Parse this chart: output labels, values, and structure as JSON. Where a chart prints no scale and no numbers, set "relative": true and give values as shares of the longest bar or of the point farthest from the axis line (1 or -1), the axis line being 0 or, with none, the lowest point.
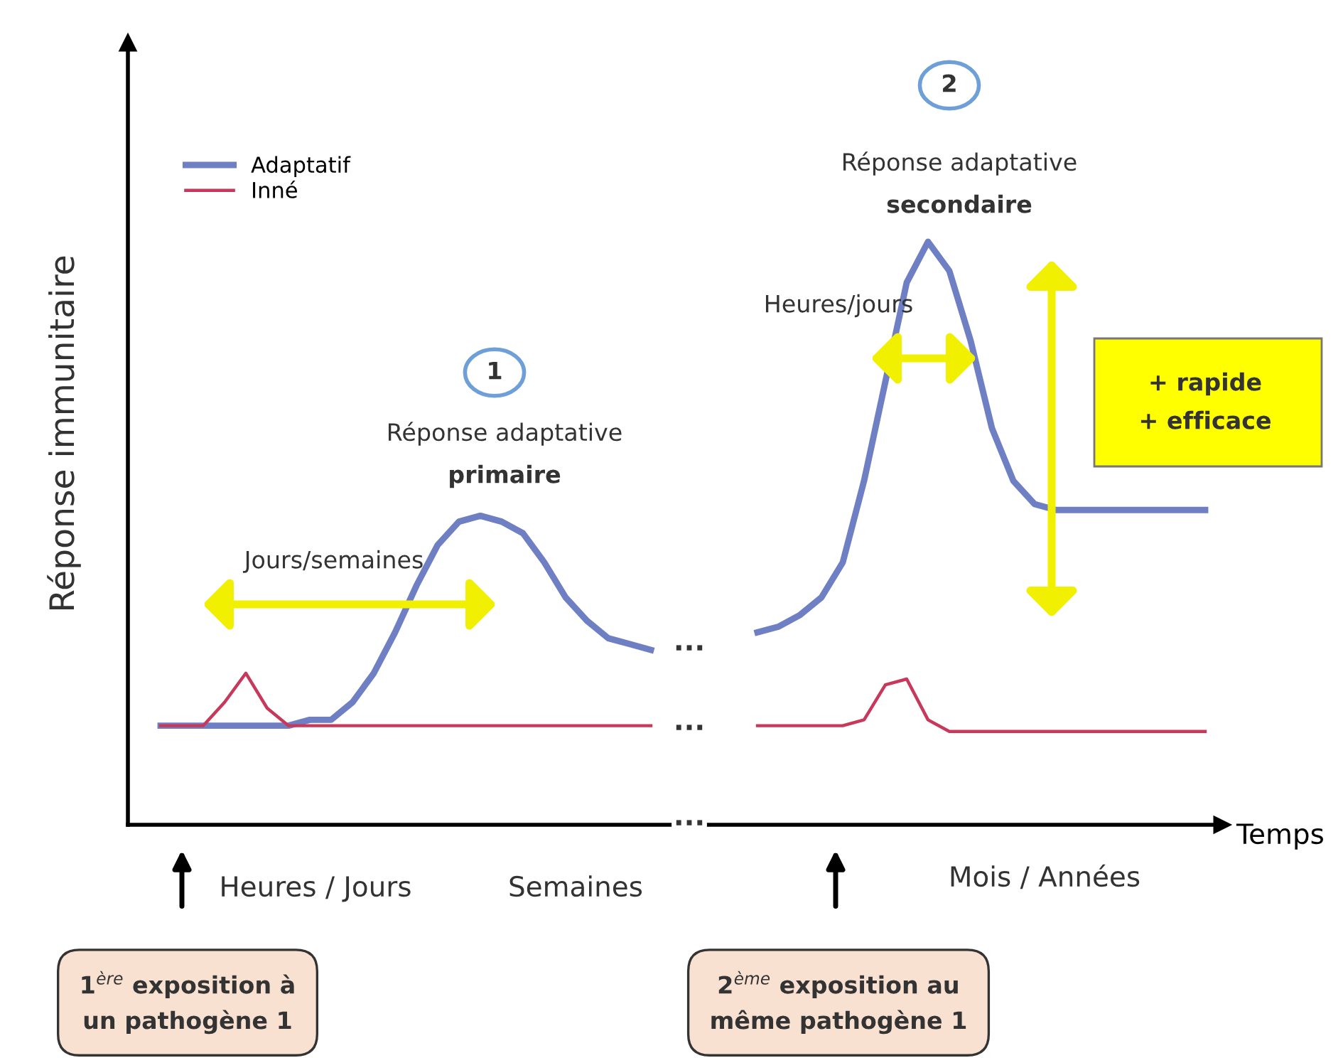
{
  "chart_data": {
    "type": "line",
    "relative": true,
    "xlabel": "Temps",
    "ylabel": "Réponse immunitaire",
    "legend": "top left",
    "marker": "none",
    "line_style": "solid",
    "categories": [
      null,
      null,
      null,
      null,
      null,
      null,
      null,
      null,
      null,
      null,
      null,
      null,
      null,
      null,
      null,
      null,
      null,
      null,
      null,
      null,
      null,
      null,
      null,
      null,
      null,
      null,
      null,
      null,
      null,
      null,
      null,
      null,
      null,
      null,
      null,
      null,
      null,
      null,
      null,
      null,
      null,
      null,
      null,
      null,
      null,
      null,
      null,
      null,
      null,
      null
    ],
    "series": [
      {
        "name": "Adaptatif",
        "color": "#6f7fc4",
        "values": [
          0.17,
          0.17,
          0.17,
          0.17,
          0.17,
          0.17,
          0.17,
          0.18,
          0.18,
          0.21,
          0.26,
          0.33,
          0.41,
          0.48,
          0.52,
          0.53,
          0.52,
          0.5,
          0.45,
          0.39,
          0.35,
          0.32,
          0.31,
          0.3,
          null,
          null,
          null,
          null,
          null,
          null,
          null,
          null,
          null,
          null,
          null,
          null,
          null,
          null,
          null,
          null,
          null,
          null,
          null,
          null,
          null,
          null,
          null,
          null,
          null,
          null
        ]
      },
      {
        "name": "Inné",
        "color": "#c8385a",
        "values": [
          0.17,
          0.17,
          0.17,
          0.21,
          0.26,
          0.2,
          0.17,
          0.17,
          0.17,
          0.17,
          0.17,
          0.17,
          0.17,
          0.17,
          0.17,
          0.17,
          0.17,
          0.17,
          0.17,
          0.17,
          0.17,
          0.17,
          0.17,
          0.17,
          null,
          null,
          null,
          null,
          null,
          null,
          null,
          null,
          null,
          null,
          null,
          null,
          null,
          null,
          null,
          null,
          null,
          null,
          null,
          null,
          null,
          null,
          null,
          null,
          null,
          null
        ]
      },
      {
        "color": "#6f7fc4",
        "values": [
          null,
          null,
          null,
          null,
          null,
          null,
          null,
          null,
          null,
          null,
          null,
          null,
          null,
          null,
          null,
          null,
          null,
          null,
          null,
          null,
          null,
          null,
          null,
          null,
          null,
          null,
          null,
          null,
          0.33,
          0.34,
          0.36,
          0.39,
          0.45,
          0.59,
          0.76,
          0.93,
          1.0,
          0.95,
          0.83,
          0.68,
          0.59,
          0.55,
          0.54,
          0.54,
          0.54,
          0.54,
          0.54,
          0.54,
          0.54,
          0.54
        ]
      },
      {
        "color": "#c8385a",
        "values": [
          null,
          null,
          null,
          null,
          null,
          null,
          null,
          null,
          null,
          null,
          null,
          null,
          null,
          null,
          null,
          null,
          null,
          null,
          null,
          null,
          null,
          null,
          null,
          null,
          null,
          null,
          null,
          null,
          0.17,
          0.17,
          0.17,
          0.17,
          0.17,
          0.18,
          0.24,
          0.25,
          0.18,
          0.16,
          0.16,
          0.16,
          0.16,
          0.16,
          0.16,
          0.16,
          0.16,
          0.16,
          0.16,
          0.16,
          0.16,
          0.16
        ]
      }
    ],
    "annotations": [
      "1",
      "Réponse adaptative",
      "primaire",
      "2",
      "Réponse adaptative",
      "secondaire",
      "Jours/semaines",
      "Heures/jours",
      "+ rapide",
      "+ efficace",
      "...",
      "...",
      "...",
      "Heures / Jours",
      "Semaines",
      "Mois / Années",
      "1$^{ère}$ exposition à\nun pathogène 1",
      "2$^{ème}$ exposition au\nmême pathogène 1"
    ]
  }
}
